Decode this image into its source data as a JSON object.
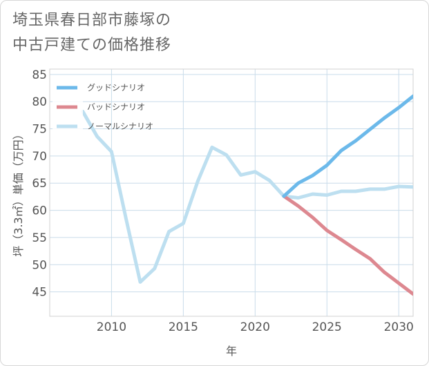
{
  "title": {
    "line1": "埼玉県春日部市藤塚の",
    "line2": "中古戸建ての価格推移"
  },
  "colors": {
    "good": "#6cb9ea",
    "bad": "#dd8890",
    "normal": "#bddff0",
    "grid": "#c9dcea",
    "axis_text": "#555555"
  },
  "chart_data": {
    "type": "line",
    "xlabel": "年",
    "ylabel": "坪（3.3㎡）単価（万円）",
    "xlim": [
      2005.7,
      2031
    ],
    "ylim": [
      40.5,
      86
    ],
    "xticks": [
      2010,
      2015,
      2020,
      2025,
      2030
    ],
    "yticks": [
      45,
      50,
      55,
      60,
      65,
      70,
      75,
      80,
      85
    ],
    "legend_position": "top-left",
    "series": [
      {
        "name": "グッドシナリオ",
        "key": "good",
        "x": [
          2022,
          2023,
          2024,
          2025,
          2026,
          2027,
          2028,
          2029,
          2030,
          2031
        ],
        "values": [
          62.6,
          65.0,
          66.4,
          68.3,
          71.0,
          72.8,
          74.9,
          77.0,
          78.9,
          81.0
        ]
      },
      {
        "name": "バッドシナリオ",
        "key": "bad",
        "x": [
          2022,
          2023,
          2024,
          2025,
          2026,
          2027,
          2028,
          2029,
          2030,
          2031
        ],
        "values": [
          62.6,
          60.8,
          58.7,
          56.3,
          54.6,
          52.8,
          51.1,
          48.6,
          46.6,
          44.6
        ]
      },
      {
        "name": "ノーマルシナリオ",
        "key": "normal",
        "x": [
          2008,
          2009,
          2010,
          2011,
          2012,
          2013,
          2014,
          2015,
          2016,
          2017,
          2018,
          2019,
          2020,
          2021,
          2022,
          2023,
          2024,
          2025,
          2026,
          2027,
          2028,
          2029,
          2030,
          2031
        ],
        "values": [
          78.2,
          73.6,
          70.8,
          58.6,
          46.8,
          49.3,
          56.1,
          57.6,
          65.3,
          71.6,
          70.2,
          66.5,
          67.1,
          65.5,
          62.6,
          62.3,
          63.0,
          62.8,
          63.5,
          63.5,
          63.9,
          63.9,
          64.4,
          64.3
        ]
      }
    ]
  }
}
